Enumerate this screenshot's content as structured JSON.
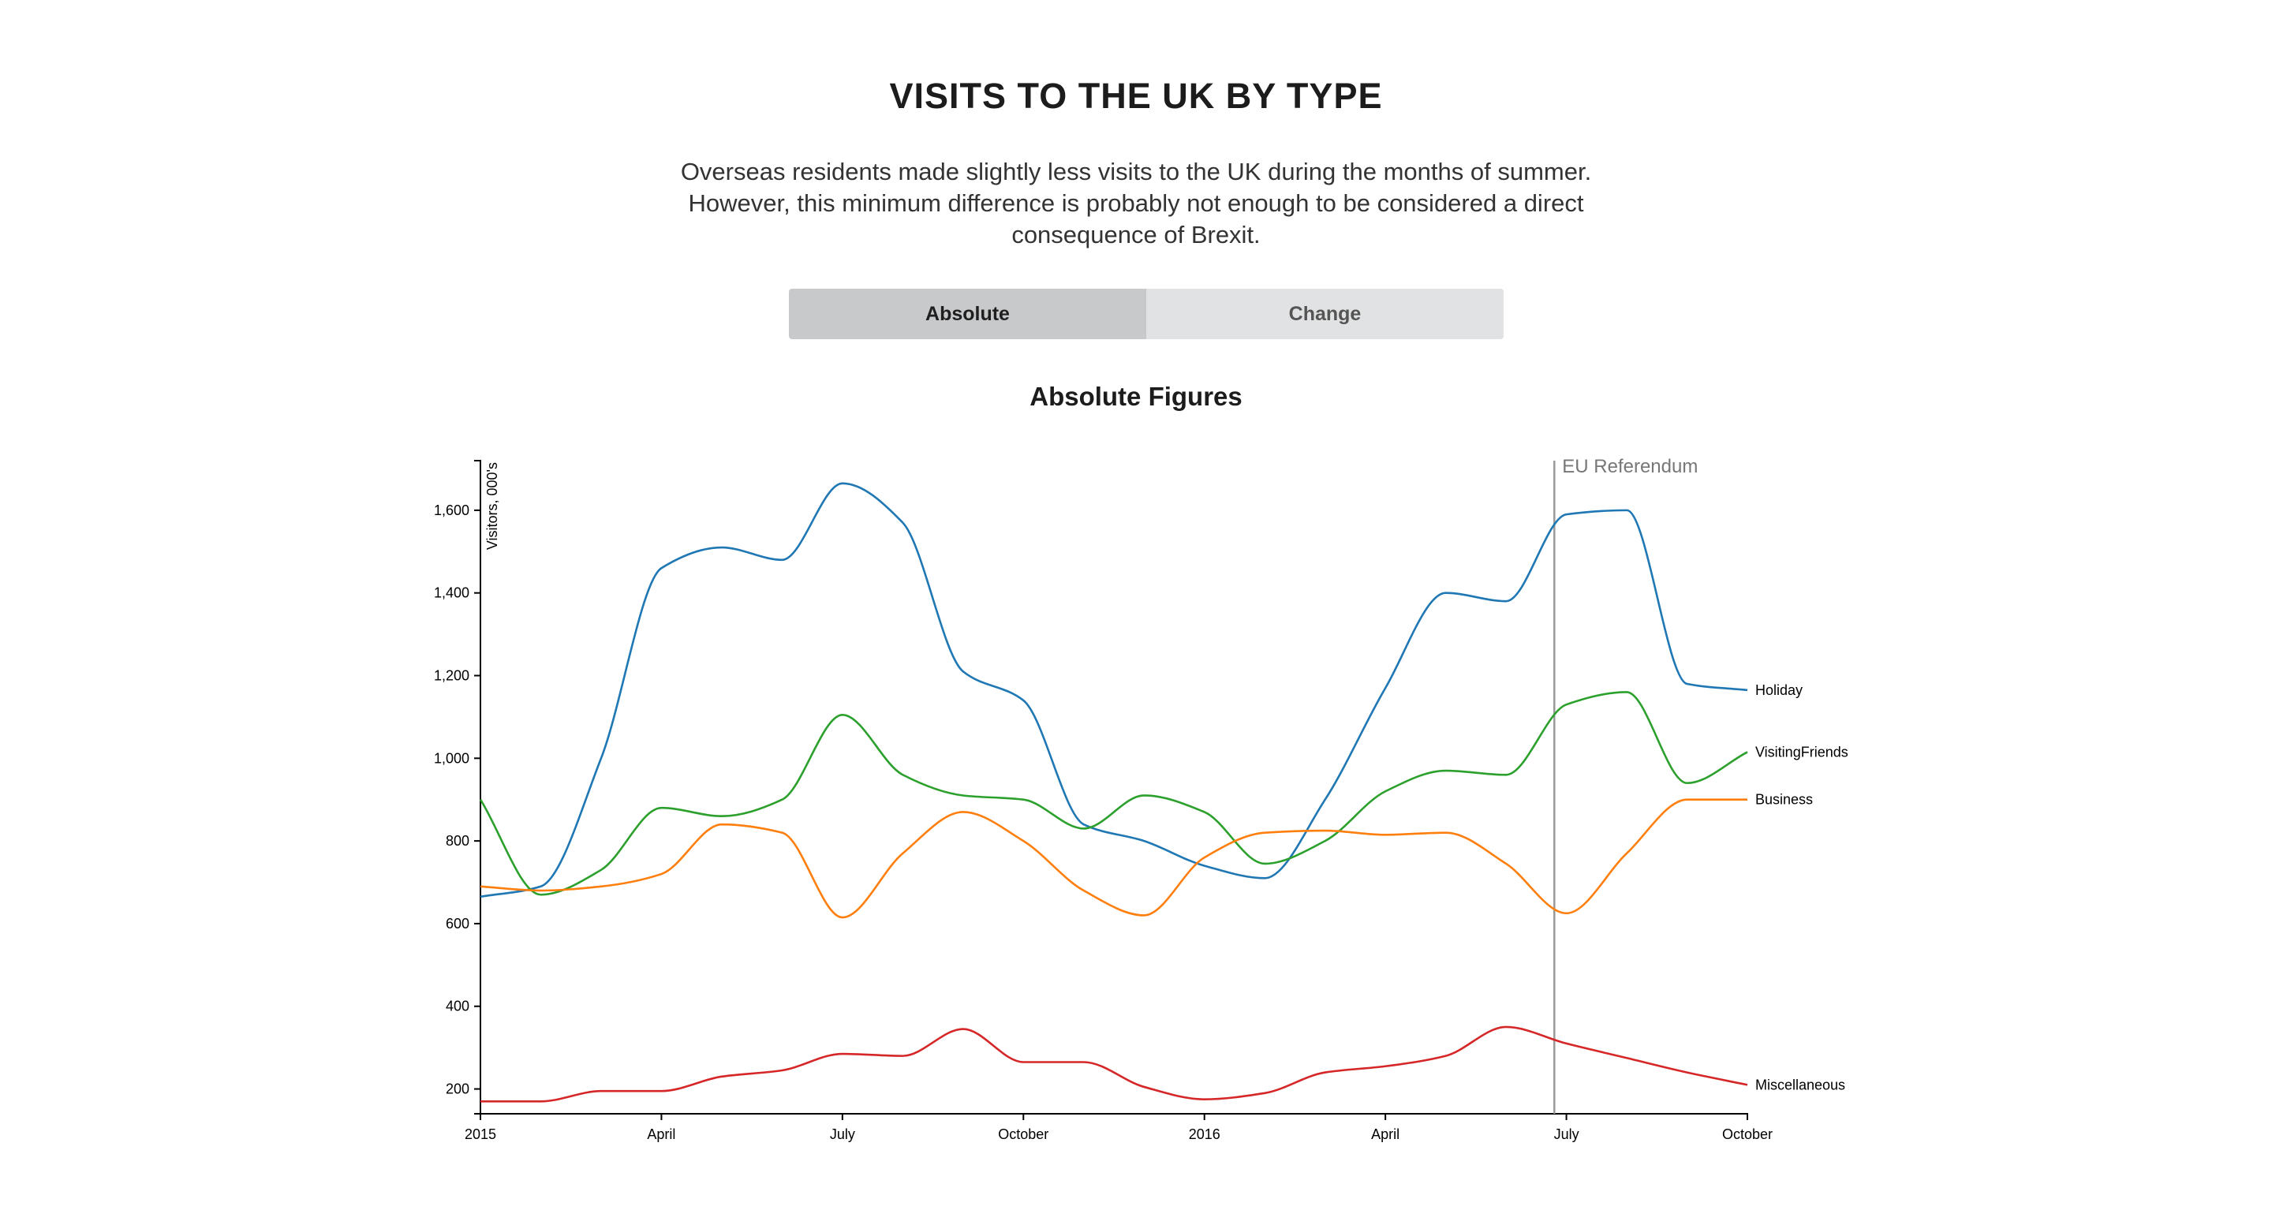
{
  "header": {
    "title": "VISITS TO THE UK BY TYPE",
    "subtitle": "Overseas residents made slightly less visits to the UK during the months of summer. However, this minimum difference is probably not enough to be considered a direct consequence of Brexit."
  },
  "toggle": {
    "absolute_label": "Absolute",
    "change_label": "Change",
    "active": "Absolute"
  },
  "chart_data": {
    "type": "line",
    "title": "Absolute Figures",
    "ylabel": "Visitors, 000's",
    "xlabel": "",
    "ylim": [
      140,
      1720
    ],
    "yticks": [
      200,
      400,
      600,
      800,
      1000,
      1200,
      1400,
      1600
    ],
    "ytick_labels": [
      "200",
      "400",
      "600",
      "800",
      "1,000",
      "1,200",
      "1,400",
      "1,600"
    ],
    "xticks": [
      {
        "x": 0,
        "label": "2015"
      },
      {
        "x": 3,
        "label": "April"
      },
      {
        "x": 6,
        "label": "July"
      },
      {
        "x": 9,
        "label": "October"
      },
      {
        "x": 12,
        "label": "2016"
      },
      {
        "x": 15,
        "label": "April"
      },
      {
        "x": 18,
        "label": "July"
      },
      {
        "x": 21,
        "label": "October"
      }
    ],
    "x": [
      0,
      1,
      2,
      3,
      4,
      5,
      6,
      7,
      8,
      9,
      10,
      11,
      12,
      13,
      14,
      15,
      16,
      17,
      18,
      19,
      20,
      21
    ],
    "series": [
      {
        "name": "Holiday",
        "color": "#1f77b4",
        "values": [
          665,
          690,
          1000,
          1460,
          1510,
          1480,
          1665,
          1570,
          1210,
          1140,
          840,
          800,
          740,
          710,
          900,
          1170,
          1400,
          1380,
          1590,
          1600,
          1180,
          1165
        ]
      },
      {
        "name": "VisitingFriends",
        "color": "#2ca02c",
        "values": [
          900,
          670,
          730,
          880,
          860,
          900,
          1105,
          960,
          910,
          900,
          830,
          910,
          870,
          745,
          800,
          920,
          970,
          960,
          1130,
          1160,
          940,
          1015
        ]
      },
      {
        "name": "Business",
        "color": "#ff7f0e",
        "values": [
          690,
          680,
          690,
          720,
          840,
          820,
          615,
          770,
          870,
          800,
          680,
          620,
          760,
          820,
          825,
          815,
          820,
          745,
          625,
          770,
          900,
          900
        ]
      },
      {
        "name": "Miscellaneous",
        "color": "#d62728",
        "values": [
          170,
          170,
          195,
          195,
          230,
          245,
          285,
          280,
          345,
          265,
          265,
          205,
          175,
          190,
          240,
          255,
          280,
          350,
          310,
          275,
          240,
          210
        ]
      }
    ],
    "annotation": {
      "label": "EU Referendum",
      "x": 17.8
    }
  }
}
